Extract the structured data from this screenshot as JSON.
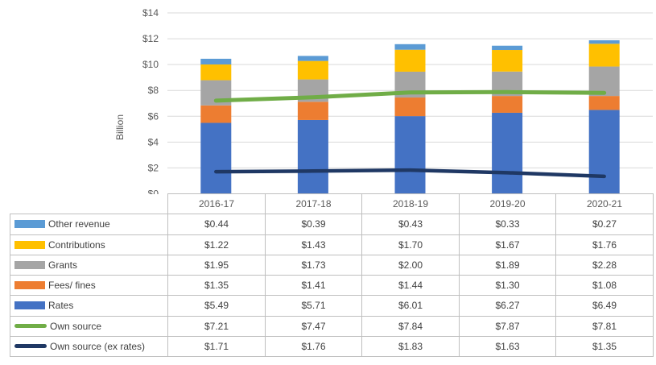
{
  "chart_data": {
    "type": "combo-stacked-bar-line",
    "title": "",
    "xlabel": "",
    "ylabel": "Billion",
    "categories": [
      "2016-17",
      "2017-18",
      "2018-19",
      "2019-20",
      "2020-21"
    ],
    "series": [
      {
        "name": "Other revenue",
        "type": "bar",
        "color": "#5B9BD5",
        "values": [
          0.44,
          0.39,
          0.43,
          0.33,
          0.27
        ],
        "labels": [
          "$0.44",
          "$0.39",
          "$0.43",
          "$0.33",
          "$0.27"
        ]
      },
      {
        "name": "Contributions",
        "type": "bar",
        "color": "#FFC000",
        "values": [
          1.22,
          1.43,
          1.7,
          1.67,
          1.76
        ],
        "labels": [
          "$1.22",
          "$1.43",
          "$1.70",
          "$1.67",
          "$1.76"
        ]
      },
      {
        "name": "Grants",
        "type": "bar",
        "color": "#A5A5A5",
        "values": [
          1.95,
          1.73,
          2.0,
          1.89,
          2.28
        ],
        "labels": [
          "$1.95",
          "$1.73",
          "$2.00",
          "$1.89",
          "$2.28"
        ]
      },
      {
        "name": "Fees/ fines",
        "type": "bar",
        "color": "#ED7D31",
        "values": [
          1.35,
          1.41,
          1.44,
          1.3,
          1.08
        ],
        "labels": [
          "$1.35",
          "$1.41",
          "$1.44",
          "$1.30",
          "$1.08"
        ]
      },
      {
        "name": "Rates",
        "type": "bar",
        "color": "#4472C4",
        "values": [
          5.49,
          5.71,
          6.01,
          6.27,
          6.49
        ],
        "labels": [
          "$5.49",
          "$5.71",
          "$6.01",
          "$6.27",
          "$6.49"
        ]
      },
      {
        "name": "Own source",
        "type": "line",
        "color": "#70AD47",
        "values": [
          7.21,
          7.47,
          7.84,
          7.87,
          7.81
        ],
        "labels": [
          "$7.21",
          "$7.47",
          "$7.84",
          "$7.87",
          "$7.81"
        ]
      },
      {
        "name": "Own source (ex rates)",
        "type": "line",
        "color": "#1F3864",
        "values": [
          1.71,
          1.76,
          1.83,
          1.63,
          1.35
        ],
        "labels": [
          "$1.71",
          "$1.76",
          "$1.83",
          "$1.63",
          "$1.35"
        ]
      }
    ],
    "stack_order_bottom_up": [
      "Rates",
      "Fees/ fines",
      "Grants",
      "Contributions",
      "Other revenue"
    ],
    "ylim": [
      0,
      14
    ],
    "y_tick_step": 2,
    "y_tick_labels": [
      "$0",
      "$2",
      "$4",
      "$6",
      "$8",
      "$10",
      "$12",
      "$14"
    ],
    "grid": true,
    "legend_position": "data-table-left"
  },
  "colors": {
    "gridline": "#D9D9D9",
    "axis_text": "#595959",
    "table_text": "#404040",
    "table_border": "#BFBFBF",
    "background": "#FFFFFF"
  }
}
